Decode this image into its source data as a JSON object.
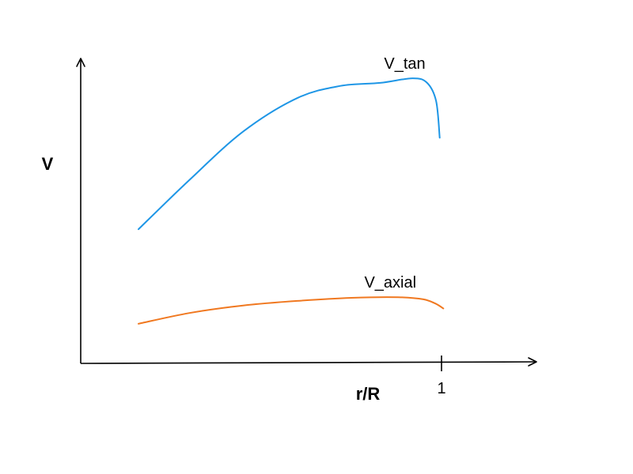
{
  "chart_data": {
    "type": "line",
    "title": "",
    "xlabel": "r/R",
    "ylabel": "V",
    "x_ticks": [
      {
        "value": 1,
        "label": "1"
      }
    ],
    "xlim": [
      0,
      1.27
    ],
    "ylim": [
      0,
      1
    ],
    "grid": false,
    "legend": "none",
    "series": [
      {
        "name": "V_tan",
        "color": "#1e96e6",
        "points": [
          [
            0.16,
            0.44
          ],
          [
            0.3,
            0.6
          ],
          [
            0.45,
            0.76
          ],
          [
            0.6,
            0.87
          ],
          [
            0.72,
            0.91
          ],
          [
            0.83,
            0.92
          ],
          [
            0.92,
            0.935
          ],
          [
            0.96,
            0.92
          ],
          [
            0.985,
            0.86
          ],
          [
            0.995,
            0.74
          ]
        ]
      },
      {
        "name": "V_axial",
        "color": "#f07820",
        "points": [
          [
            0.16,
            0.13
          ],
          [
            0.3,
            0.165
          ],
          [
            0.45,
            0.19
          ],
          [
            0.6,
            0.205
          ],
          [
            0.75,
            0.215
          ],
          [
            0.88,
            0.217
          ],
          [
            0.95,
            0.21
          ],
          [
            0.985,
            0.195
          ],
          [
            1.005,
            0.18
          ]
        ]
      }
    ]
  }
}
